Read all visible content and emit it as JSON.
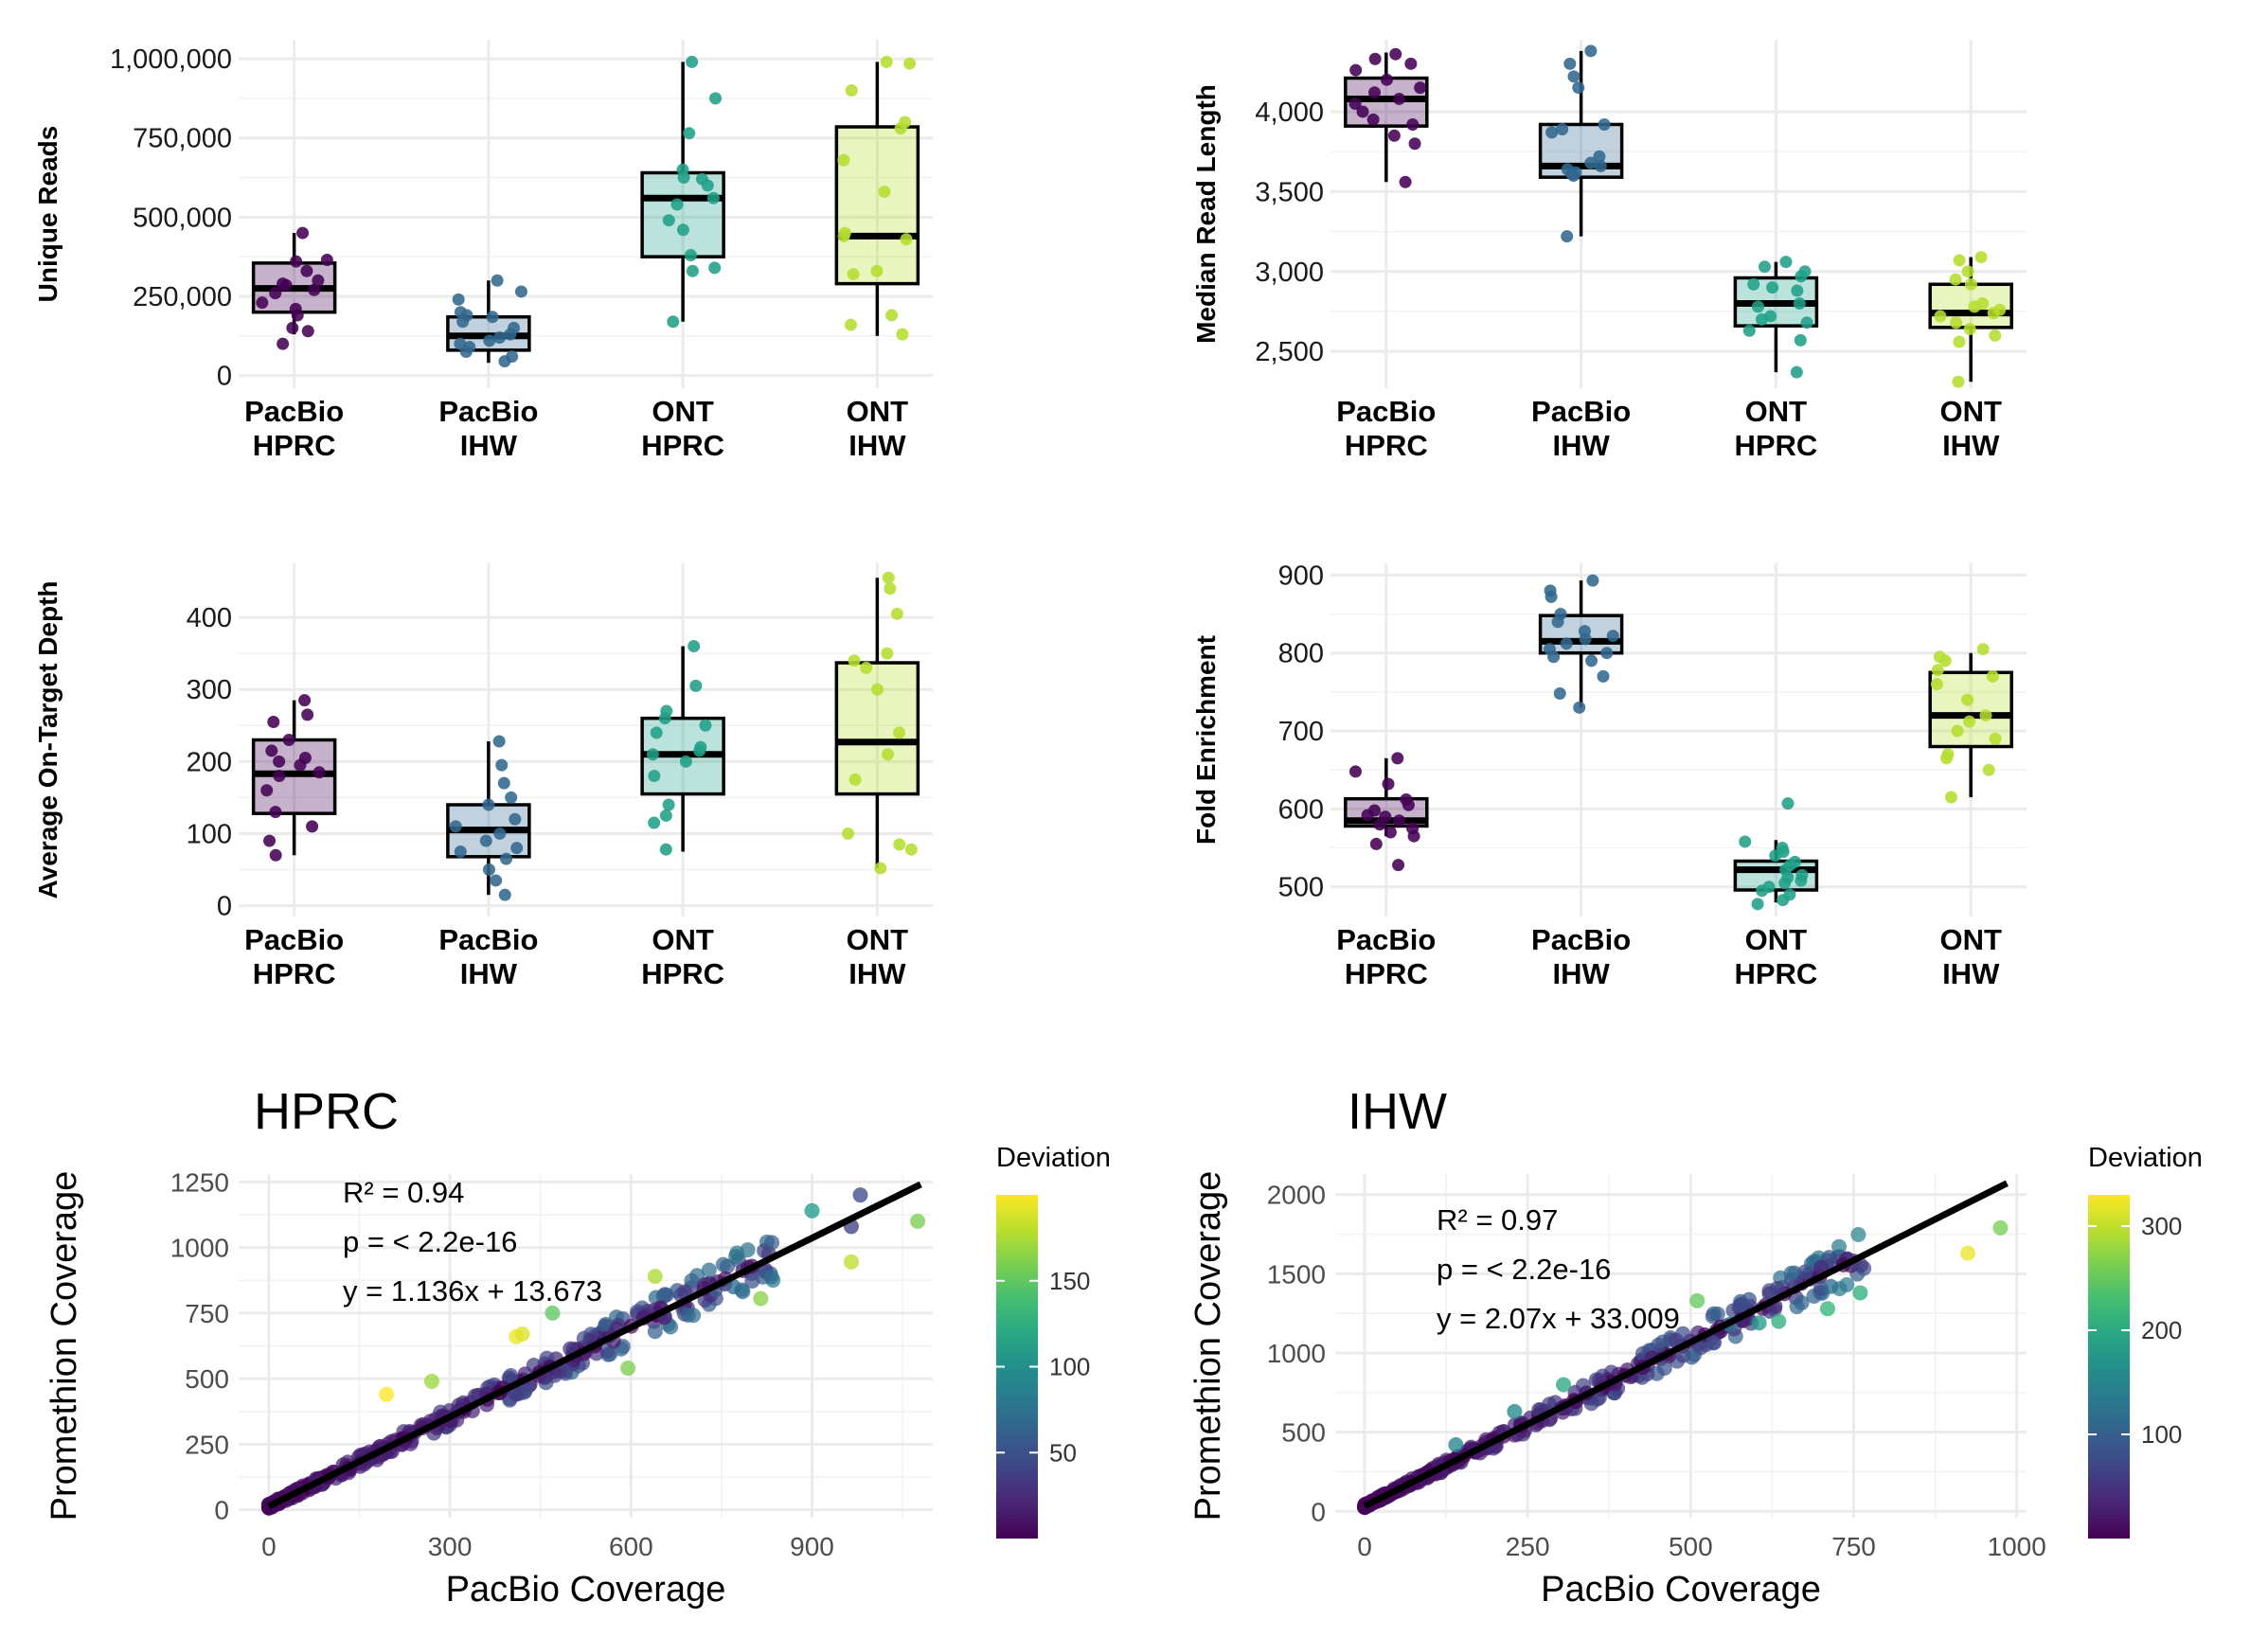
{
  "colors": {
    "pacbio_hprc": "#440154",
    "pacbio_ihw": "#31688E",
    "ont_hprc": "#1FA187",
    "ont_ihw": "#B4DE2C",
    "grid": "#EBEBEB",
    "ink": "#000000"
  },
  "chart_data": [
    {
      "type": "box",
      "ylabel": "Unique Reads",
      "categories": [
        "PacBio\nHPRC",
        "PacBio\nIHW",
        "ONT\nHPRC",
        "ONT\nIHW"
      ],
      "yticks": [
        0,
        250000,
        500000,
        750000,
        1000000
      ],
      "ytick_labels": [
        "0",
        "250,000",
        "500,000",
        "750,000",
        "1,000,000"
      ],
      "ylim": [
        -40000,
        1060000
      ],
      "boxes": [
        {
          "q1": 200000,
          "median": 275000,
          "q3": 355000,
          "whisker_low": 130000,
          "whisker_high": 450000
        },
        {
          "q1": 80000,
          "median": 125000,
          "q3": 185000,
          "whisker_low": 40000,
          "whisker_high": 300000
        },
        {
          "q1": 375000,
          "median": 560000,
          "q3": 640000,
          "whisker_low": 170000,
          "whisker_high": 990000
        },
        {
          "q1": 290000,
          "median": 440000,
          "q3": 785000,
          "whisker_low": 125000,
          "whisker_high": 990000
        }
      ],
      "points": [
        [
          450000,
          365000,
          360000,
          330000,
          300000,
          290000,
          285000,
          270000,
          260000,
          230000,
          210000,
          190000,
          150000,
          140000,
          100000
        ],
        [
          300000,
          265000,
          240000,
          200000,
          190000,
          185000,
          170000,
          150000,
          130000,
          120000,
          110000,
          100000,
          90000,
          75000,
          60000,
          45000
        ],
        [
          990000,
          875000,
          765000,
          650000,
          625000,
          620000,
          600000,
          560000,
          540000,
          490000,
          460000,
          380000,
          340000,
          330000,
          170000
        ],
        [
          990000,
          985000,
          900000,
          800000,
          780000,
          680000,
          580000,
          450000,
          440000,
          430000,
          330000,
          320000,
          190000,
          160000,
          130000
        ]
      ]
    },
    {
      "type": "box",
      "ylabel": "Median Read Length",
      "categories": [
        "PacBio\nHPRC",
        "PacBio\nIHW",
        "ONT\nHPRC",
        "ONT\nIHW"
      ],
      "yticks": [
        2500,
        3000,
        3500,
        4000
      ],
      "ytick_labels": [
        "2,500",
        "3,000",
        "3,500",
        "4,000"
      ],
      "ylim": [
        2270,
        4450
      ],
      "boxes": [
        {
          "q1": 3910,
          "median": 4080,
          "q3": 4210,
          "whisker_low": 3560,
          "whisker_high": 4370
        },
        {
          "q1": 3590,
          "median": 3660,
          "q3": 3920,
          "whisker_low": 3220,
          "whisker_high": 4380
        },
        {
          "q1": 2660,
          "median": 2800,
          "q3": 2960,
          "whisker_low": 2370,
          "whisker_high": 3060
        },
        {
          "q1": 2650,
          "median": 2740,
          "q3": 2920,
          "whisker_low": 2310,
          "whisker_high": 3090
        }
      ],
      "points": [
        [
          4360,
          4330,
          4300,
          4260,
          4200,
          4150,
          4120,
          4080,
          4050,
          4000,
          3950,
          3920,
          3850,
          3800,
          3560
        ],
        [
          4380,
          4300,
          4220,
          4150,
          3920,
          3890,
          3870,
          3720,
          3680,
          3660,
          3640,
          3620,
          3610,
          3600,
          3220
        ],
        [
          3060,
          3030,
          3000,
          2970,
          2920,
          2900,
          2880,
          2800,
          2780,
          2720,
          2700,
          2680,
          2630,
          2570,
          2370
        ],
        [
          3090,
          3070,
          3000,
          2950,
          2920,
          2800,
          2780,
          2760,
          2740,
          2720,
          2680,
          2640,
          2600,
          2560,
          2310
        ]
      ]
    },
    {
      "type": "box",
      "ylabel": "Average On-Target Depth",
      "categories": [
        "PacBio\nHPRC",
        "PacBio\nIHW",
        "ONT\nHPRC",
        "ONT\nIHW"
      ],
      "yticks": [
        0,
        100,
        200,
        300,
        400
      ],
      "ytick_labels": [
        "0",
        "100",
        "200",
        "300",
        "400"
      ],
      "ylim": [
        -15,
        475
      ],
      "boxes": [
        {
          "q1": 128,
          "median": 183,
          "q3": 230,
          "whisker_low": 70,
          "whisker_high": 285
        },
        {
          "q1": 68,
          "median": 105,
          "q3": 140,
          "whisker_low": 15,
          "whisker_high": 228
        },
        {
          "q1": 155,
          "median": 210,
          "q3": 260,
          "whisker_low": 75,
          "whisker_high": 360
        },
        {
          "q1": 155,
          "median": 227,
          "q3": 337,
          "whisker_low": 52,
          "whisker_high": 455
        }
      ],
      "points": [
        [
          285,
          265,
          255,
          230,
          215,
          205,
          200,
          195,
          185,
          180,
          160,
          130,
          110,
          90,
          70
        ],
        [
          228,
          195,
          170,
          150,
          140,
          120,
          110,
          100,
          90,
          80,
          75,
          65,
          50,
          35,
          15
        ],
        [
          360,
          305,
          270,
          260,
          250,
          240,
          220,
          215,
          210,
          200,
          180,
          140,
          125,
          115,
          78
        ],
        [
          455,
          440,
          405,
          350,
          340,
          330,
          300,
          240,
          210,
          175,
          100,
          85,
          78,
          52
        ]
      ]
    },
    {
      "type": "box",
      "ylabel": "Fold Enrichment",
      "categories": [
        "PacBio\nHPRC",
        "PacBio\nIHW",
        "ONT\nHPRC",
        "ONT\nIHW"
      ],
      "yticks": [
        500,
        600,
        700,
        800,
        900
      ],
      "ytick_labels": [
        "500",
        "600",
        "700",
        "800",
        "900"
      ],
      "ylim": [
        462,
        915
      ],
      "boxes": [
        {
          "q1": 578,
          "median": 585,
          "q3": 613,
          "whisker_low": 565,
          "whisker_high": 665
        },
        {
          "q1": 800,
          "median": 815,
          "q3": 848,
          "whisker_low": 730,
          "whisker_high": 893
        },
        {
          "q1": 496,
          "median": 522,
          "q3": 533,
          "whisker_low": 480,
          "whisker_high": 560
        },
        {
          "q1": 680,
          "median": 720,
          "q3": 775,
          "whisker_low": 615,
          "whisker_high": 800
        }
      ],
      "points": [
        [
          665,
          648,
          632,
          612,
          605,
          598,
          592,
          590,
          585,
          580,
          575,
          570,
          565,
          555,
          528
        ],
        [
          893,
          880,
          872,
          850,
          840,
          828,
          822,
          818,
          812,
          805,
          800,
          795,
          790,
          770,
          748,
          730
        ],
        [
          607,
          558,
          550,
          545,
          540,
          532,
          528,
          522,
          515,
          512,
          508,
          505,
          500,
          495,
          490,
          483,
          478
        ],
        [
          805,
          795,
          790,
          778,
          770,
          760,
          740,
          720,
          712,
          700,
          690,
          670,
          665,
          650,
          615
        ]
      ]
    },
    {
      "type": "scatter",
      "title": "HPRC",
      "xlabel": "PacBio Coverage",
      "ylabel": "Promethion Coverage",
      "xlim": [
        -50,
        1100
      ],
      "ylim": [
        -30,
        1280
      ],
      "xticks": [
        0,
        300,
        600,
        900
      ],
      "yticks": [
        0,
        250,
        500,
        750,
        1000,
        1250
      ],
      "annotations": [
        "R² = 0.94",
        "p = < 2.2e-16",
        "y = 1.136x + 13.673"
      ],
      "fit": {
        "slope": 1.136,
        "intercept": 13.673,
        "x_range": [
          0,
          1080
        ]
      },
      "color_scale": {
        "name": "Deviation",
        "min": 0,
        "max": 200,
        "ticks": [
          50,
          100,
          150
        ]
      },
      "scatter_n": 380,
      "outliers": [
        {
          "x": 980,
          "y": 1200,
          "d": 45
        },
        {
          "x": 965,
          "y": 1080,
          "d": 40
        },
        {
          "x": 900,
          "y": 1140,
          "d": 110
        },
        {
          "x": 1075,
          "y": 1100,
          "d": 160
        },
        {
          "x": 965,
          "y": 945,
          "d": 180
        },
        {
          "x": 815,
          "y": 805,
          "d": 165
        },
        {
          "x": 770,
          "y": 850,
          "d": 70
        },
        {
          "x": 740,
          "y": 840,
          "d": 55
        },
        {
          "x": 640,
          "y": 890,
          "d": 175
        },
        {
          "x": 595,
          "y": 540,
          "d": 160
        },
        {
          "x": 410,
          "y": 660,
          "d": 195
        },
        {
          "x": 420,
          "y": 670,
          "d": 190
        },
        {
          "x": 195,
          "y": 440,
          "d": 200
        },
        {
          "x": 270,
          "y": 490,
          "d": 170
        },
        {
          "x": 470,
          "y": 750,
          "d": 150
        }
      ]
    },
    {
      "type": "scatter",
      "title": "IHW",
      "xlabel": "PacBio Coverage",
      "ylabel": "Promethion Coverage",
      "xlim": [
        -45,
        1015
      ],
      "ylim": [
        -40,
        2130
      ],
      "xticks": [
        0,
        250,
        500,
        750,
        1000
      ],
      "yticks": [
        0,
        500,
        1000,
        1500,
        2000
      ],
      "annotations": [
        "R² = 0.97",
        "p = < 2.2e-16",
        "y = 2.07x + 33.009"
      ],
      "fit": {
        "slope": 2.07,
        "intercept": 33.009,
        "x_range": [
          0,
          985
        ]
      },
      "color_scale": {
        "name": "Deviation",
        "min": 0,
        "max": 330,
        "ticks": [
          100,
          200,
          300
        ]
      },
      "scatter_n": 380,
      "outliers": [
        {
          "x": 975,
          "y": 1790,
          "d": 260
        },
        {
          "x": 925,
          "y": 1630,
          "d": 320
        },
        {
          "x": 760,
          "y": 1380,
          "d": 210
        },
        {
          "x": 750,
          "y": 1580,
          "d": 60
        },
        {
          "x": 715,
          "y": 1420,
          "d": 120
        },
        {
          "x": 710,
          "y": 1280,
          "d": 220
        },
        {
          "x": 700,
          "y": 1540,
          "d": 40
        },
        {
          "x": 635,
          "y": 1200,
          "d": 210
        },
        {
          "x": 605,
          "y": 1190,
          "d": 180
        },
        {
          "x": 510,
          "y": 1330,
          "d": 250
        },
        {
          "x": 560,
          "y": 1180,
          "d": 130
        },
        {
          "x": 305,
          "y": 800,
          "d": 200
        },
        {
          "x": 230,
          "y": 630,
          "d": 160
        },
        {
          "x": 140,
          "y": 420,
          "d": 150
        }
      ]
    }
  ]
}
